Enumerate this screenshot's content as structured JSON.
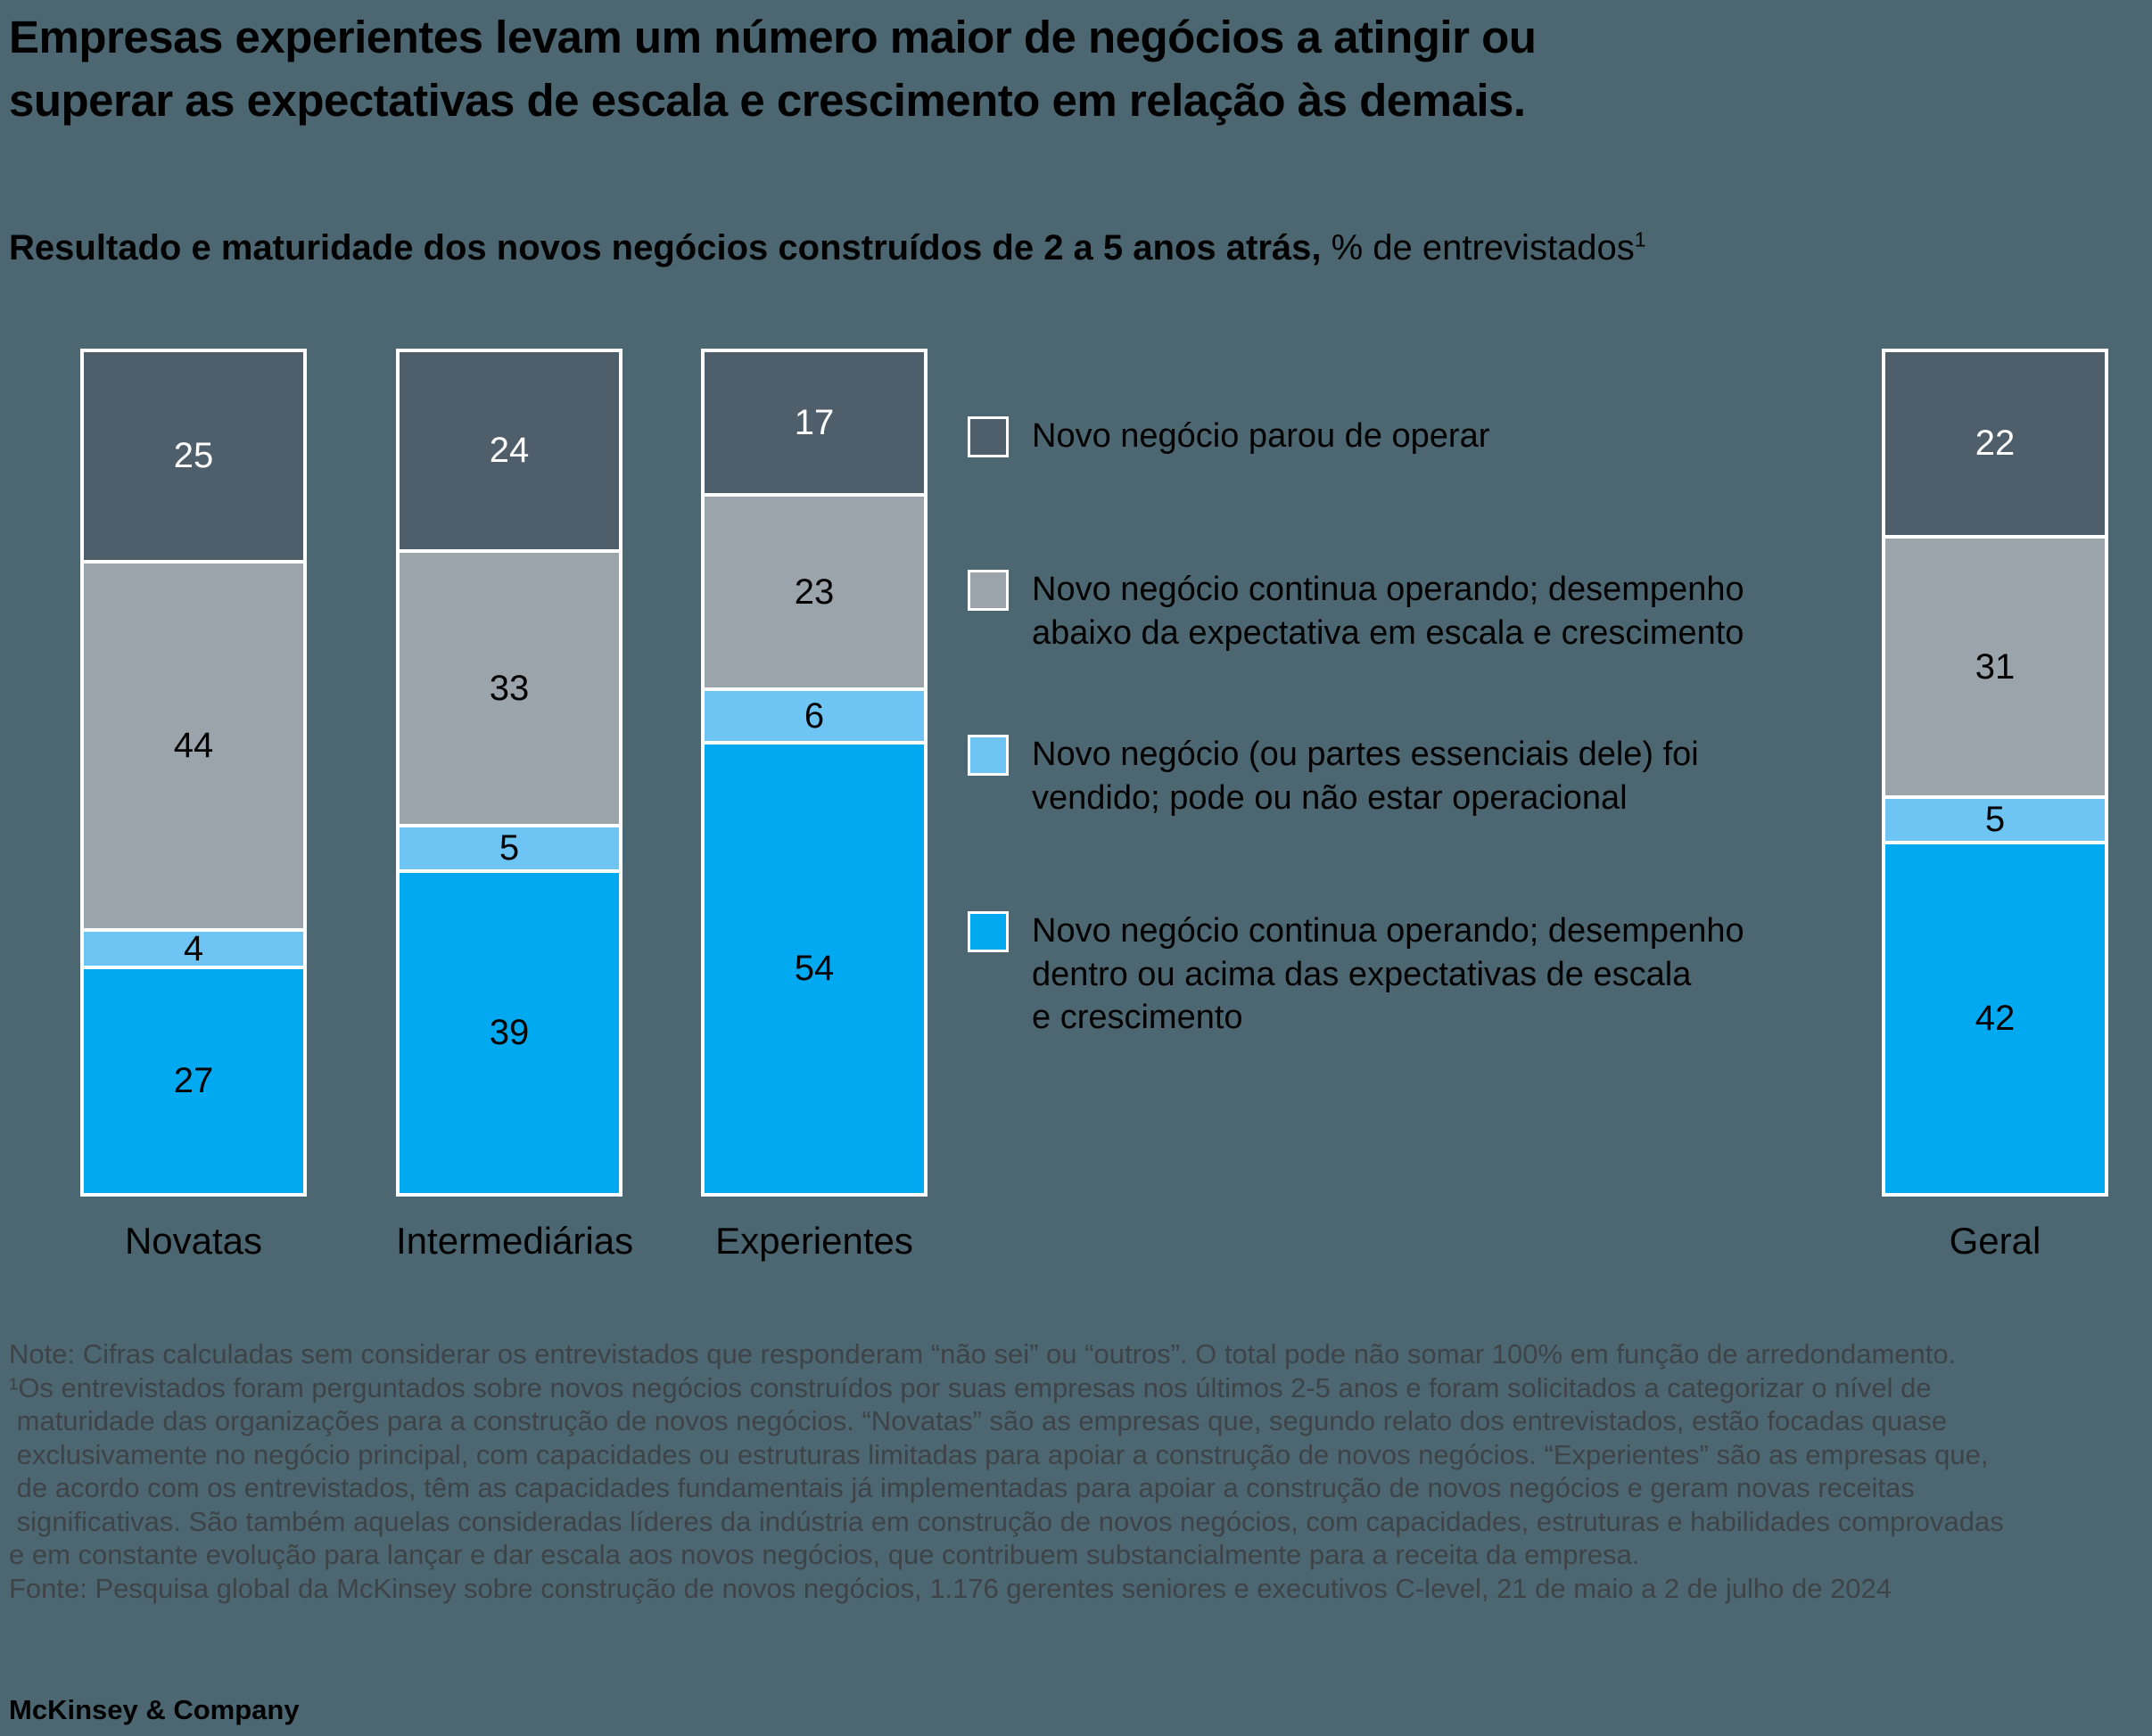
{
  "title": "Empresas experientes levam um número maior de negócios a atingir ou\nsuperar as expectativas de escala e crescimento em relação às demais.",
  "subtitle": {
    "bold": "Resultado e maturidade dos novos negócios construídos de 2 a 5 anos atrás,",
    "regular": " % de entrevistados",
    "superscript": "1"
  },
  "colors": {
    "background": "#4C6771",
    "ceased": "#4F5E6B",
    "below_expectations": "#9BA3AB",
    "sold": "#6EC4F2",
    "meeting_expectations": "#00A9F0"
  },
  "chart_data": {
    "type": "bar",
    "stacked": true,
    "orientation": "vertical",
    "unit": "% de entrevistados",
    "value_labels": "inside",
    "axis": {
      "visible": false,
      "ylim": [
        0,
        100
      ]
    },
    "categories": [
      "Novatas",
      "Intermediárias",
      "Experientes",
      "Geral"
    ],
    "series": [
      {
        "name": "Novo negócio parou de operar",
        "color_key": "ceased",
        "values": [
          25,
          24,
          17,
          22
        ]
      },
      {
        "name": "Novo negócio continua operando; desempenho abaixo da expectativa em escala e crescimento",
        "color_key": "below_expectations",
        "values": [
          44,
          33,
          23,
          31
        ]
      },
      {
        "name": "Novo negócio (ou partes essenciais dele) foi vendido; pode ou não estar operacional",
        "color_key": "sold",
        "values": [
          4,
          5,
          6,
          5
        ]
      },
      {
        "name": "Novo negócio continua operando; desempenho dentro ou acima das expectativas de escala e crescimento",
        "color_key": "meeting_expectations",
        "values": [
          27,
          39,
          54,
          42
        ]
      }
    ],
    "legend_position": "center-right"
  },
  "legend": {
    "items": [
      {
        "label": "Novo negócio parou de operar",
        "color_key": "ceased"
      },
      {
        "label": "Novo negócio continua operando; desempenho\nabaixo da expectativa em escala e crescimento",
        "color_key": "below_expectations"
      },
      {
        "label": "Novo negócio (ou partes essenciais dele) foi\nvendido; pode ou não estar operacional",
        "color_key": "sold"
      },
      {
        "label": "Novo negócio continua operando; desempenho\ndentro ou acima das expectativas de escala\ne crescimento",
        "color_key": "meeting_expectations"
      }
    ]
  },
  "footnote": "Note: Cifras calculadas sem considerar os entrevistados que responderam “não sei” ou “outros”. O total pode não somar 100% em função de arredondamento.\n¹Os entrevistados foram perguntados sobre novos negócios construídos por suas empresas nos últimos 2-5 anos e foram solicitados a categorizar o nível de\n maturidade das organizações para a construção de novos negócios. “Novatas” são as empresas que, segundo relato dos entrevistados, estão focadas quase\n exclusivamente no negócio principal, com capacidades ou estruturas limitadas para apoiar a construção de novos negócios. “Experientes” são as empresas que,\n de acordo com os entrevistados, têm as capacidades fundamentais já implementadas para apoiar a construção de novos negócios e geram novas receitas\n significativas. São também aquelas consideradas líderes da indústria em construção de novos negócios, com capacidades, estruturas e habilidades comprovadas\ne em constante evolução para lançar e dar escala aos novos negócios, que contribuem substancialmente para a receita da empresa.\nFonte: Pesquisa global da McKinsey sobre construção de novos negócios, 1.176 gerentes seniores e executivos C-level, 21 de maio a 2 de julho de 2024",
  "logo": "McKinsey & Company"
}
